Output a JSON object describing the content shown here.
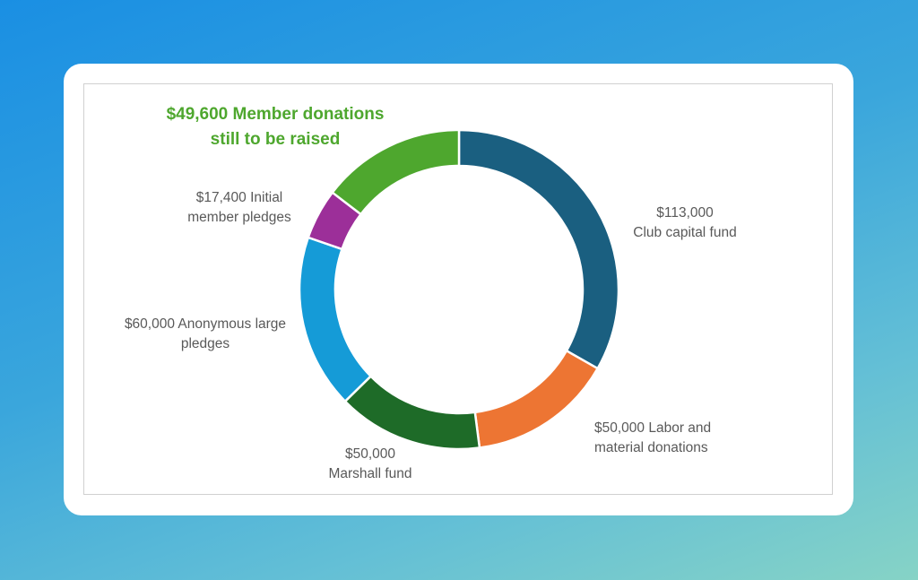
{
  "chart_data": {
    "type": "pie",
    "subtype": "donut",
    "title": "",
    "start": "top",
    "direction": "clockwise",
    "slices": [
      {
        "name": "Club capital fund",
        "value": 113000,
        "label": "$113,000",
        "text": "Club capital fund",
        "color": "#1a5f80"
      },
      {
        "name": "Labor and material donations",
        "value": 50000,
        "label": "$50,000 Labor and",
        "text": "material donations",
        "color": "#ed7533"
      },
      {
        "name": "Marshall fund",
        "value": 50000,
        "label": "$50,000",
        "text": "Marshall fund",
        "color": "#1e6b28"
      },
      {
        "name": "Anonymous large pledges",
        "value": 60000,
        "label": "$60,000 Anonymous large",
        "text": "pledges",
        "color": "#159bd7"
      },
      {
        "name": "Initial member pledges",
        "value": 17400,
        "label": "$17,400 Initial",
        "text": "member pledges",
        "color": "#9c2f99"
      },
      {
        "name": "Member donations still to be raised",
        "value": 49600,
        "label": "$49,600  Member donations",
        "text": "still to be raised",
        "color": "#4ea72e"
      }
    ]
  }
}
